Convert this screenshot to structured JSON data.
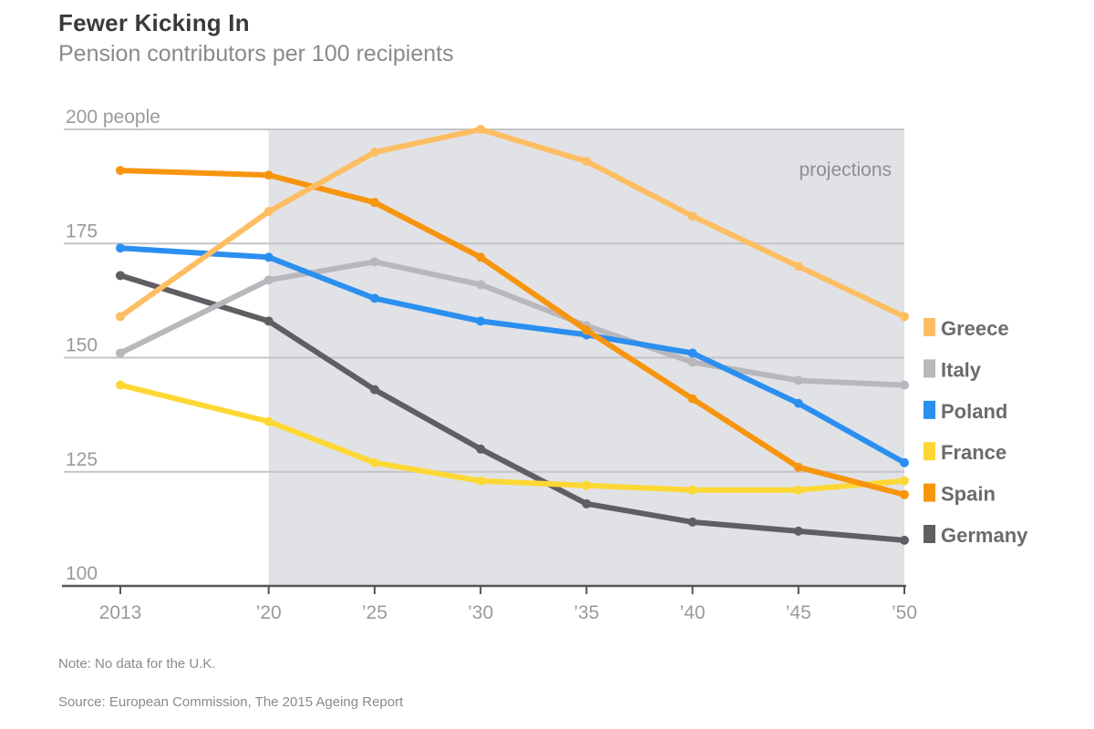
{
  "header": {
    "title": "Fewer Kicking In",
    "subtitle": "Pension contributors per 100 recipients"
  },
  "footer": {
    "note": "Note: No data for the U.K.",
    "source": "Source: European Commission, The 2015 Ageing Report"
  },
  "chart_data": {
    "type": "line",
    "title": "Fewer Kicking In",
    "subtitle": "Pension contributors per 100 recipients",
    "xlabel": "",
    "ylabel": "",
    "x": [
      2013,
      2020,
      2025,
      2030,
      2035,
      2040,
      2045,
      2050
    ],
    "x_tick_labels": [
      "2013",
      "’20",
      "’25",
      "’30",
      "’35",
      "’40",
      "’45",
      "’50"
    ],
    "y_ticks": [
      100,
      125,
      150,
      175,
      200
    ],
    "y_tick_labels": [
      "100",
      "125",
      "150",
      "175",
      "200 people"
    ],
    "ylim": [
      100,
      200
    ],
    "grid": true,
    "annotation": {
      "text": "projections",
      "from_x": 2020,
      "to_x": 2050,
      "shaded": true,
      "shade_color": "#E1E2E6"
    },
    "legend_position": "right",
    "series": [
      {
        "name": "Greece",
        "color": "#FDBE63",
        "values": [
          159,
          182,
          195,
          200,
          193,
          181,
          170,
          159
        ]
      },
      {
        "name": "Italy",
        "color": "#B8B8BC",
        "values": [
          151,
          167,
          171,
          166,
          157,
          149,
          145,
          144
        ]
      },
      {
        "name": "Poland",
        "color": "#2B8FF0",
        "values": [
          174,
          172,
          163,
          158,
          155,
          151,
          140,
          127
        ]
      },
      {
        "name": "France",
        "color": "#FDD835",
        "values": [
          144,
          136,
          127,
          123,
          122,
          121,
          121,
          123
        ]
      },
      {
        "name": "Spain",
        "color": "#F7950E",
        "values": [
          191,
          190,
          184,
          172,
          156,
          141,
          126,
          120
        ]
      },
      {
        "name": "Germany",
        "color": "#5F5F63",
        "values": [
          168,
          158,
          143,
          130,
          118,
          114,
          112,
          110
        ]
      }
    ]
  }
}
